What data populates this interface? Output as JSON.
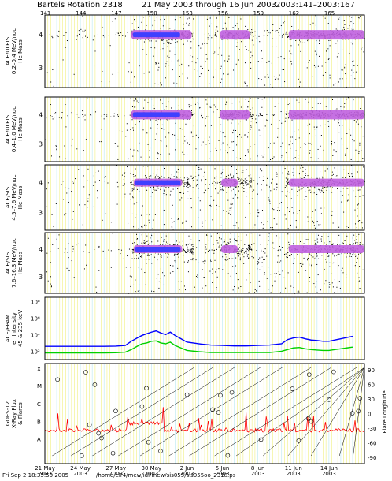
{
  "header": {
    "title": "Bartels Rotation 2318",
    "date_range": "21 May 2003 through 16 Jun 2003",
    "doy_range": "2003:141–2003:167"
  },
  "footer": {
    "timestamp": "Fri Sep  2 18:35:50 2005",
    "path": "/home/elr4/mew/idl/mew/sis055/sis055oo_2318.ps"
  },
  "colors": {
    "grid_yellow": "#f0f080",
    "grid_cyan": "#b8e8f0",
    "blue_line": "#0000ff",
    "green_line": "#00d000",
    "red_line": "#ff0000",
    "heat_low": "#000000",
    "heat_mid": "#c060e0",
    "heat_high": "#4040ff"
  },
  "chart_data": [
    {
      "type": "scatter",
      "ylabel_lines": [
        "ACE/ULEIS",
        "0.2–0.4 MeV/nuc",
        "He Mass"
      ],
      "ytick_labels": [
        "4",
        "3"
      ],
      "ylim": [
        2.4,
        4.6
      ],
      "description": "Mass histogram density plot; He-4 band"
    },
    {
      "type": "scatter",
      "ylabel_lines": [
        "ACE/ULEIS",
        "0.4–1.0 MeV/nuc",
        "He Mass"
      ],
      "ytick_labels": [
        "4",
        "3"
      ],
      "ylim": [
        2.4,
        4.6
      ]
    },
    {
      "type": "scatter",
      "ylabel_lines": [
        "ACE/SIS",
        "4.5–7.6 MeV/nuc",
        "He Mass"
      ],
      "ytick_labels": [
        "4",
        "3"
      ],
      "ylim": [
        2.4,
        4.6
      ]
    },
    {
      "type": "scatter",
      "ylabel_lines": [
        "ACE/SIS",
        "7.6–16.3 MeV/nuc",
        "He Mass"
      ],
      "ytick_labels": [
        "4",
        "3"
      ],
      "ylim": [
        2.4,
        4.6
      ]
    },
    {
      "type": "line",
      "ylabel_lines": [
        "ACE/EPAM",
        "e⁻ Intensity",
        "45 & 235 keV"
      ],
      "ytick_labels": [
        "10⁸",
        "10⁶",
        "10⁴",
        "10²"
      ],
      "log_scale": true,
      "ylim_exp": [
        1,
        8.5
      ],
      "x": [
        141,
        142,
        143,
        144,
        145,
        146,
        147,
        147.8,
        148.3,
        148.8,
        149.2,
        149.6,
        150.0,
        150.4,
        150.8,
        151.2,
        151.6,
        152.0,
        152.5,
        153,
        154,
        155,
        156,
        157,
        158,
        159,
        160,
        161,
        161.5,
        162,
        162.5,
        163,
        163.5,
        164,
        164.5,
        165,
        165.5,
        166,
        166.5,
        167
      ],
      "series": [
        {
          "color_key": "blue_line",
          "values_log10": [
            2.6,
            2.6,
            2.6,
            2.6,
            2.6,
            2.6,
            2.62,
            2.7,
            3.2,
            3.6,
            3.9,
            4.1,
            4.3,
            4.45,
            4.2,
            4.0,
            4.3,
            3.9,
            3.5,
            3.1,
            2.9,
            2.75,
            2.7,
            2.65,
            2.65,
            2.7,
            2.75,
            2.9,
            3.4,
            3.6,
            3.7,
            3.5,
            3.35,
            3.3,
            3.2,
            3.2,
            3.35,
            3.5,
            3.65,
            3.8
          ]
        },
        {
          "color_key": "green_line",
          "values_log10": [
            1.8,
            1.8,
            1.8,
            1.8,
            1.8,
            1.8,
            1.82,
            1.9,
            2.2,
            2.6,
            2.9,
            3.0,
            3.2,
            3.25,
            3.0,
            2.9,
            3.1,
            2.7,
            2.4,
            2.1,
            1.95,
            1.85,
            1.85,
            1.85,
            1.85,
            1.85,
            1.85,
            2.0,
            2.2,
            2.4,
            2.45,
            2.3,
            2.2,
            2.15,
            2.1,
            2.1,
            2.2,
            2.3,
            2.4,
            2.5
          ]
        }
      ]
    },
    {
      "type": "line",
      "ylabel_lines": [
        "GOES-12",
        "X-Ray Flux",
        "& Flares"
      ],
      "ytick_labels": [
        "X",
        "M",
        "C",
        "B",
        "A"
      ],
      "right_ylabel": "Flare Longitude",
      "right_ytick_labels": [
        "90",
        "60",
        "30",
        "0",
        "-30",
        "-60",
        "-90"
      ],
      "description": "X-ray flux (red) with flare markers and longitude lines"
    }
  ],
  "xaxis": {
    "doy_ticks": [
      "141",
      "144",
      "147",
      "150",
      "153",
      "156",
      "159",
      "162",
      "165"
    ],
    "date_ticks": [
      {
        "date": "21 May",
        "year": "2003"
      },
      {
        "date": "24 May",
        "year": "2003"
      },
      {
        "date": "27 May",
        "year": "2003"
      },
      {
        "date": "30 May",
        "year": "2003"
      },
      {
        "date": "2 Jun",
        "year": "2003"
      },
      {
        "date": "5 Jun",
        "year": "2003"
      },
      {
        "date": "8 Jun",
        "year": "2003"
      },
      {
        "date": "11 Jun",
        "year": "2003"
      },
      {
        "date": "14 Jun",
        "year": "2003"
      }
    ],
    "range_doy": [
      141,
      168
    ]
  }
}
